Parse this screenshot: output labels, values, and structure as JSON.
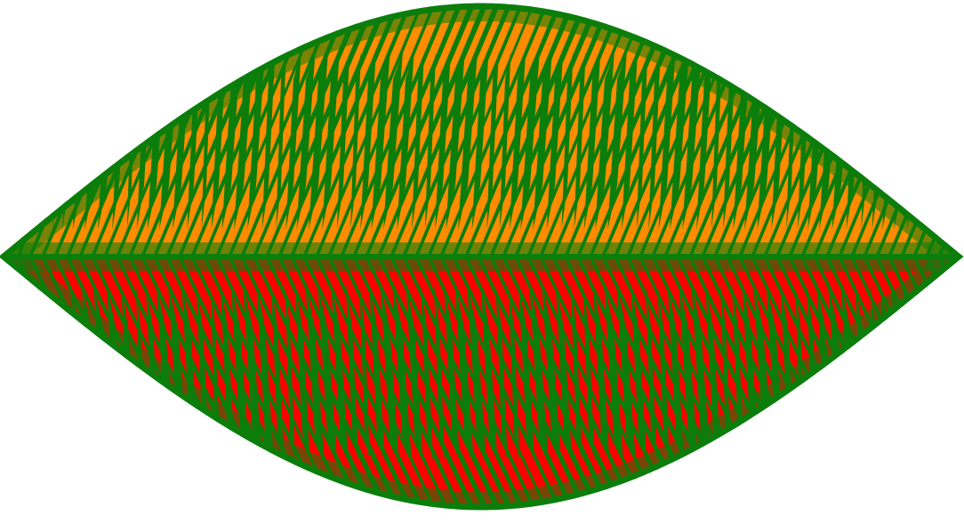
{
  "figure": {
    "description_free": true,
    "colors": {
      "background": "#ffffff",
      "outline": "#0b7d0b",
      "upper_fill": "#ff8c00",
      "lower_fill": "#ff0000",
      "stripe": "#0b7d0b"
    }
  }
}
